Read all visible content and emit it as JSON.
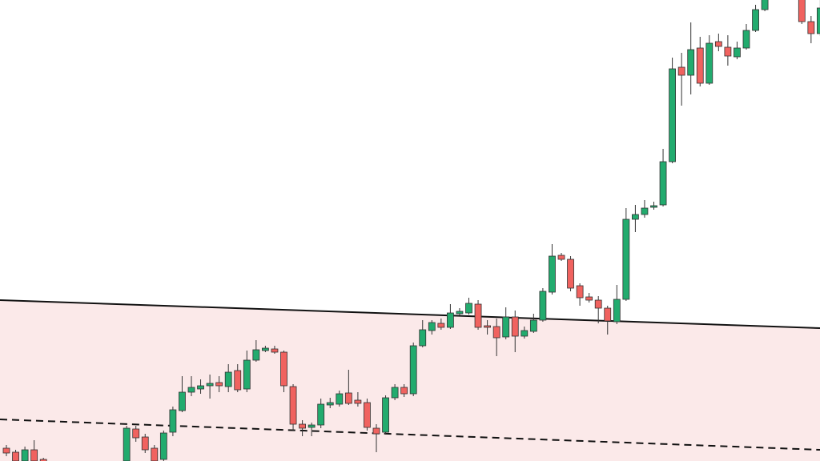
{
  "chart_data": {
    "type": "candlestick",
    "ylim": [
      0,
      576
    ],
    "up_color": "#22ab6e",
    "down_color": "#f0625f",
    "open": [
      16,
      11,
      0,
      14,
      2,
      null,
      null,
      null,
      null,
      null,
      null,
      null,
      null,
      0,
      40,
      30,
      16,
      2,
      36,
      63,
      86,
      90,
      94,
      98,
      93,
      113,
      90,
      126,
      138,
      140,
      136,
      93,
      46,
      42,
      45,
      70,
      71,
      85,
      76,
      73,
      41,
      36,
      79,
      92,
      84,
      144,
      163,
      172,
      167,
      184,
      185,
      196,
      169,
      168,
      155,
      180,
      156,
      162,
      176,
      211,
      257,
      252,
      219,
      205,
      201,
      191,
      174,
      202,
      302,
      308,
      317,
      320,
      374,
      492,
      482,
      516,
      472,
      524,
      517,
      505,
      516,
      538,
      564,
      null,
      null,
      null,
      581,
      549,
      534
    ],
    "high": [
      20,
      14,
      18,
      26,
      4,
      null,
      null,
      null,
      null,
      null,
      null,
      null,
      null,
      44,
      44,
      34,
      20,
      38,
      68,
      106,
      106,
      102,
      108,
      106,
      121,
      121,
      138,
      151,
      144,
      144,
      138,
      96,
      51,
      48,
      78,
      79,
      88,
      114,
      86,
      78,
      46,
      82,
      96,
      96,
      148,
      176,
      176,
      178,
      196,
      191,
      204,
      201,
      176,
      178,
      192,
      188,
      168,
      184,
      216,
      271,
      260,
      256,
      222,
      210,
      206,
      194,
      220,
      316,
      320,
      326,
      324,
      390,
      504,
      510,
      548,
      530,
      532,
      534,
      532,
      524,
      546,
      570,
      586,
      null,
      null,
      null,
      586,
      556,
      576
    ],
    "low": [
      6,
      -2,
      -2,
      -2,
      -6,
      null,
      null,
      null,
      null,
      null,
      null,
      null,
      null,
      -2,
      24,
      10,
      -2,
      -2,
      31,
      61,
      81,
      84,
      78,
      86,
      86,
      86,
      86,
      124,
      136,
      134,
      86,
      38,
      31,
      31,
      41,
      66,
      68,
      70,
      68,
      38,
      11,
      33,
      76,
      80,
      81,
      142,
      158,
      164,
      165,
      182,
      183,
      164,
      158,
      131,
      152,
      136,
      153,
      160,
      174,
      208,
      250,
      212,
      194,
      198,
      172,
      158,
      171,
      200,
      286,
      304,
      314,
      318,
      372,
      444,
      458,
      468,
      470,
      512,
      494,
      502,
      514,
      536,
      562,
      null,
      null,
      null,
      546,
      522,
      531
    ],
    "close": [
      10,
      0,
      14,
      0,
      -4,
      null,
      null,
      null,
      null,
      null,
      null,
      null,
      null,
      41,
      29,
      14,
      0,
      35,
      64,
      86,
      92,
      94,
      97,
      94,
      111,
      89,
      126,
      139,
      141,
      136,
      94,
      46,
      41,
      45,
      71,
      73,
      84,
      72,
      72,
      42,
      34,
      79,
      92,
      84,
      144,
      164,
      173,
      167,
      185,
      187,
      197,
      167,
      167,
      154,
      180,
      156,
      163,
      176,
      212,
      256,
      252,
      216,
      204,
      201,
      191,
      175,
      202,
      302,
      308,
      316,
      319,
      374,
      490,
      482,
      514,
      472,
      522,
      518,
      506,
      516,
      538,
      564,
      578,
      null,
      null,
      null,
      549,
      534,
      566
    ]
  }
}
